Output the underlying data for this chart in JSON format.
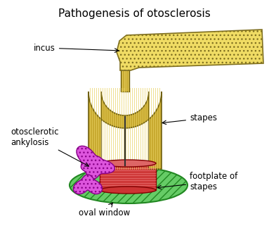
{
  "title": "Pathogenesis of otosclerosis",
  "title_fontsize": 11,
  "background_color": "#ffffff",
  "labels": {
    "incus": "incus",
    "stapes": "stapes",
    "otosclerotic_ankylosis": "otosclerotic\nankylosis",
    "footplate_of_stapes": "footplate of\nstapes",
    "oval_window": "oval window"
  },
  "colors": {
    "incus_fill": "#f0dc64",
    "stapes_arch_fill": "#c8aa30",
    "stapes_arch_stripe": "#e8d060",
    "stapes_arch_edge": "#706010",
    "stapes_col_fill": "#c8aa30",
    "stapes_col_stripe": "#e8d060",
    "center_rod": "#303030",
    "footplate_fill": "#cc3333",
    "footplate_stripe": "#e06060",
    "oval_window_fill": "#66cc66",
    "oval_window_edge": "#228822",
    "ankylosis_fill": "#dd55dd",
    "ankylosis_edge": "#880088",
    "arrow_color": "#000000"
  }
}
